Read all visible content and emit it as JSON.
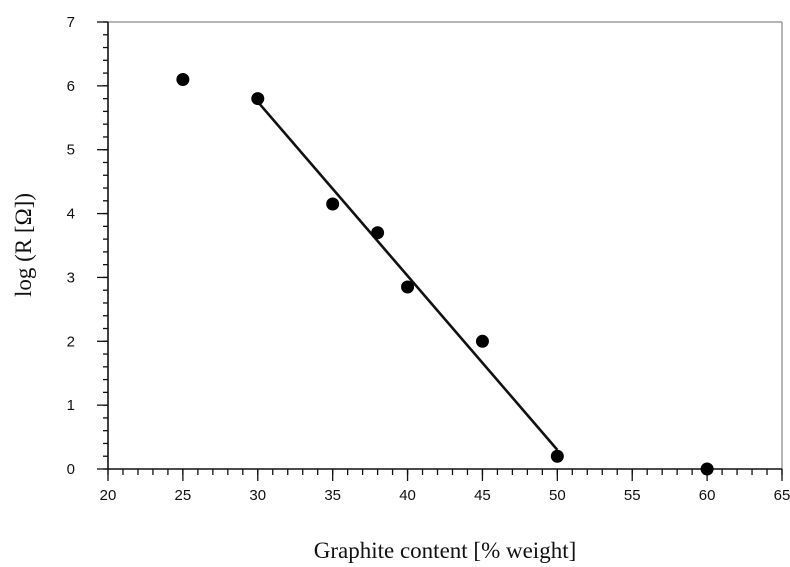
{
  "chart_data": {
    "type": "scatter",
    "title": "",
    "xlabel": "Graphite content [% weight]",
    "ylabel": "log (R [Ω])",
    "xlim": [
      20,
      65
    ],
    "ylim": [
      0,
      7
    ],
    "x_ticks": [
      "20",
      "25",
      "30",
      "35",
      "40",
      "45",
      "50",
      "55",
      "60",
      "65"
    ],
    "y_ticks": [
      "0",
      "1",
      "2",
      "3",
      "4",
      "5",
      "6",
      "7"
    ],
    "x_minor_step": 1,
    "y_minor_step": 0.2,
    "grid": false,
    "series": [
      {
        "x": [
          25,
          30,
          35,
          38,
          40,
          45,
          50,
          60
        ],
        "y": [
          6.1,
          5.8,
          4.15,
          3.7,
          2.85,
          2.0,
          0.2,
          0.0
        ]
      }
    ],
    "fit_line": {
      "x": [
        30,
        50
      ],
      "y": [
        5.75,
        0.3
      ]
    }
  }
}
